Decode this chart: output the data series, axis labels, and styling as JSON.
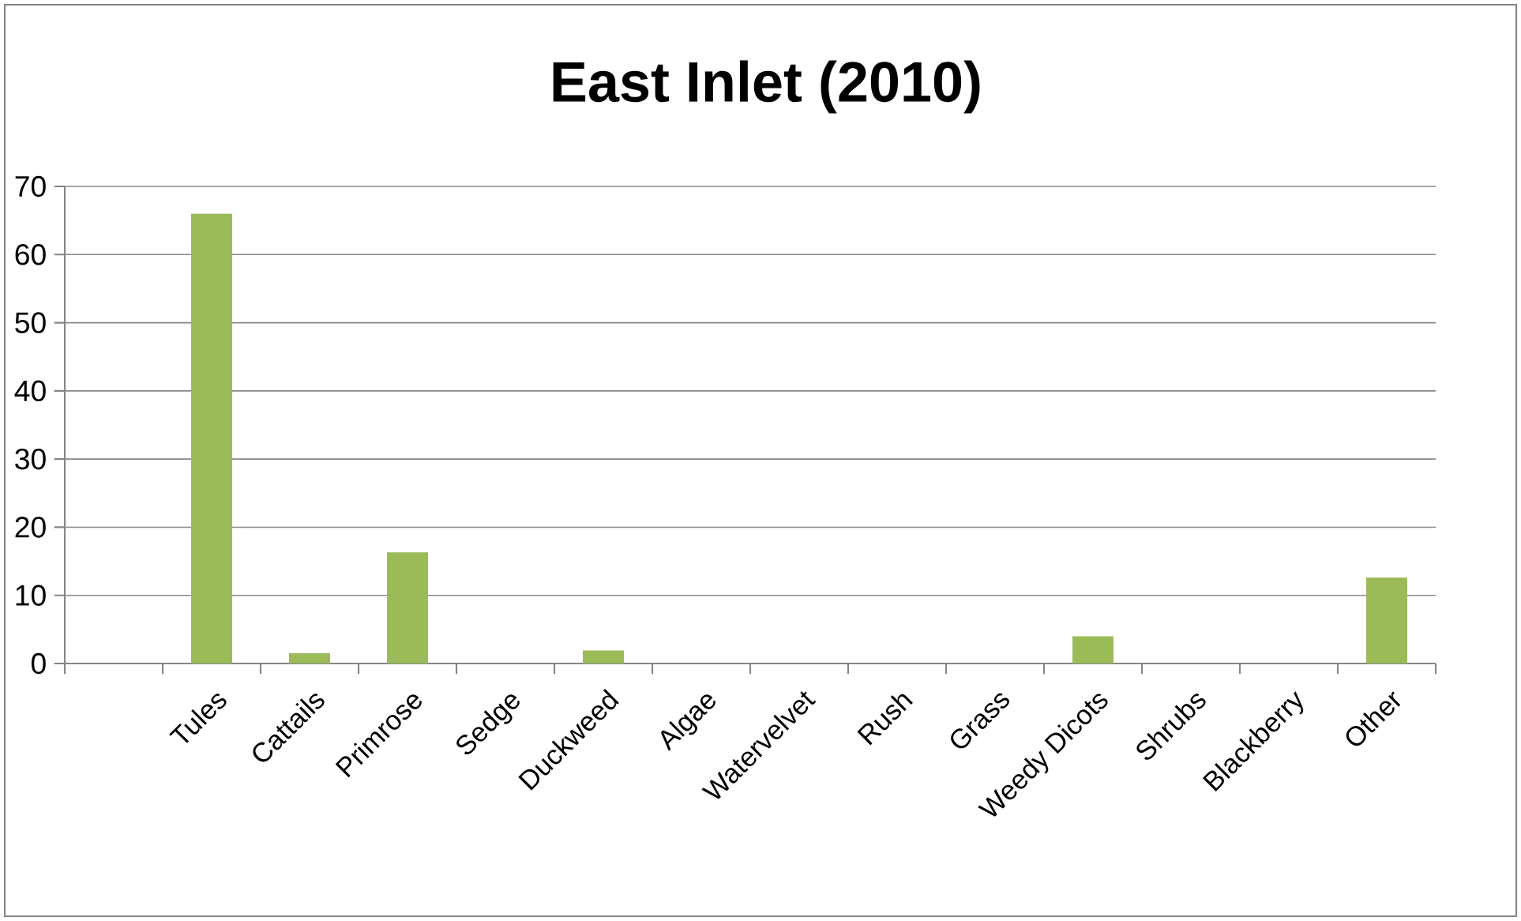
{
  "chart_data": {
    "type": "bar",
    "title": "East Inlet (2010)",
    "categories": [
      null,
      "Tules",
      "Cattails",
      "Primrose",
      "Sedge",
      "Duckweed",
      "Algae",
      "Watervelvet",
      "Rush",
      "Grass",
      "Weedy Dicots",
      "Shrubs",
      "Blackberry",
      "Other"
    ],
    "values": [
      null,
      66,
      1.5,
      16.3,
      0,
      1.9,
      0,
      0,
      0,
      0,
      4.0,
      0,
      0,
      12.6
    ],
    "color": "#9bbb59",
    "ylim": [
      0,
      70
    ],
    "yticks": [
      0,
      10,
      20,
      30,
      40,
      50,
      60,
      70
    ],
    "grid": "y"
  }
}
